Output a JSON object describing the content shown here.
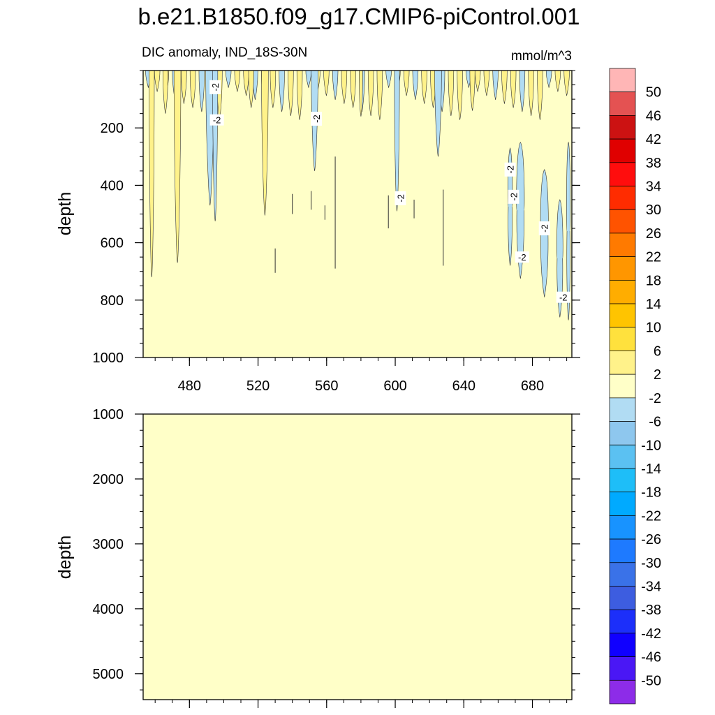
{
  "title": "b.e21.B1850.f09_g17.CMIP6-piControl.001",
  "chart_data": {
    "type": "contour",
    "variable_label": "DIC anomaly, IND_18S-30N",
    "units": "mmol/m^3",
    "x_range": [
      453,
      703
    ],
    "x_ticks": [
      "480",
      "520",
      "560",
      "600",
      "640",
      "680"
    ],
    "x_tick_values": [
      480,
      520,
      560,
      600,
      640,
      680
    ],
    "upper_panel": {
      "ylabel": "depth",
      "ylim": [
        0,
        1000
      ],
      "y_ticks": [
        "200",
        "400",
        "600",
        "800",
        "1000"
      ],
      "y_tick_values": [
        200,
        400,
        600,
        800,
        1000
      ]
    },
    "lower_panel": {
      "ylabel": "depth",
      "ylim": [
        1000,
        5400
      ],
      "y_ticks": [
        "1000",
        "2000",
        "3000",
        "4000",
        "5000"
      ],
      "y_tick_values": [
        1000,
        2000,
        3000,
        4000,
        5000
      ]
    },
    "contour_labels": [
      {
        "text": "-2",
        "x": 495,
        "depth": 58,
        "angle": -90
      },
      {
        "text": "-2",
        "x": 496,
        "depth": 172,
        "angle": 0
      },
      {
        "text": "-2",
        "x": 554,
        "depth": 168,
        "angle": -90
      },
      {
        "text": "-2",
        "x": 603,
        "depth": 445,
        "angle": -90
      },
      {
        "text": "-2",
        "x": 667,
        "depth": 345,
        "angle": -90
      },
      {
        "text": "-2",
        "x": 669,
        "depth": 440,
        "angle": -90
      },
      {
        "text": "-2",
        "x": 674,
        "depth": 650,
        "angle": 0
      },
      {
        "text": "-2",
        "x": 687,
        "depth": 550,
        "angle": -90
      },
      {
        "text": "-2",
        "x": 698,
        "depth": 790,
        "angle": 0
      }
    ],
    "colorbar": {
      "levels": [
        "50",
        "46",
        "42",
        "38",
        "34",
        "30",
        "26",
        "22",
        "18",
        "14",
        "10",
        "6",
        "2",
        "-2",
        "-6",
        "-10",
        "-14",
        "-18",
        "-22",
        "-26",
        "-30",
        "-34",
        "-38",
        "-42",
        "-46",
        "-50"
      ],
      "colors": [
        "#ffb6b6",
        "#e45252",
        "#cc1212",
        "#e00000",
        "#ff0d0d",
        "#ff2c00",
        "#ff5300",
        "#ff7a00",
        "#ff9600",
        "#ffad00",
        "#ffc400",
        "#ffe13d",
        "#fff28a",
        "#ffffc8",
        "#b1dcf3",
        "#8ec7ee",
        "#5bc1f2",
        "#1ebef8",
        "#00aaff",
        "#1893ff",
        "#1e7aff",
        "#3a72e8",
        "#3d5de0",
        "#1c2ffa",
        "#1000ff",
        "#4a17f5",
        "#8d2ce8"
      ]
    },
    "fill_colors": {
      "background": "#ffffc8",
      "positive_small": "#fff28a",
      "negative_small": "#b1dcf3"
    }
  }
}
